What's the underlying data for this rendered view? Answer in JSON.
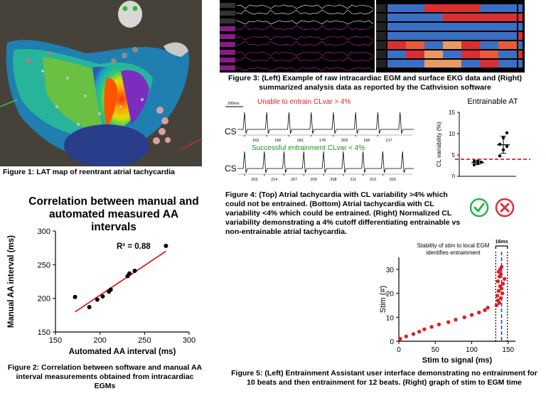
{
  "fig1": {
    "caption": "Figure 1: LAT map of reentrant atrial tachycardia"
  },
  "fig2": {
    "caption": "Figure 2: Correlation between software and manual AA interval measurements obtained from intracardiac EGMs"
  },
  "fig3": {
    "caption": "Figure 3: (Left) Example of raw intracardiac EGM and surface EKG data and (Right) summarized analysis data as reported by the Cathvision software"
  },
  "fig4": {
    "label_top": "Unable to entrain CLvar > 4%",
    "label_bottom": "Successful entrainment CLvar < 4%",
    "scale_bar": "200ms",
    "cs_top": "CS",
    "cs_bottom": "CS",
    "intervals_top": [
      "163",
      "166",
      "181",
      "178",
      "203",
      "166",
      "217"
    ],
    "intervals_bottom": [
      "203",
      "214",
      "207",
      "209",
      "208",
      "211",
      "210",
      "203"
    ],
    "caption": "Figure 4: (Top) Atrial tachycardia with CL variability >4% which could not be entrained. (Bottom) Atrial tachycardia with CL variability <4% which could be entrained. (Right) Normalized CL variability demonstrating a 4% cutoff differentiating entrainable vs non-entrainable atrial tachycardia.",
    "check_icon": "check-circle-icon",
    "cross_icon": "x-circle-icon"
  },
  "fig5": {
    "caption": "Figure 5: (Left) Entrainment Assistant user interface demonstrating no entrainment for 10 beats and then entrainment for 12 beats. (Right) graph of stim to EGM time"
  },
  "chart_data": [
    {
      "type": "scatter",
      "title": "Correlation between manual and automated measured AA intervals",
      "xlabel": "Automated AA interval (ms)",
      "ylabel": "Manual AA interval (ms)",
      "xlim": [
        150,
        300
      ],
      "ylim": [
        150,
        300
      ],
      "xticks": [
        "150",
        "200",
        "250",
        "300"
      ],
      "yticks": [
        "150",
        "200",
        "250",
        "300"
      ],
      "annotation": "R² = 0.88",
      "points": [
        {
          "x": 172,
          "y": 202
        },
        {
          "x": 188,
          "y": 187
        },
        {
          "x": 197,
          "y": 198
        },
        {
          "x": 203,
          "y": 203
        },
        {
          "x": 210,
          "y": 210
        },
        {
          "x": 212,
          "y": 213
        },
        {
          "x": 231,
          "y": 233
        },
        {
          "x": 233,
          "y": 237
        },
        {
          "x": 239,
          "y": 241
        },
        {
          "x": 274,
          "y": 278
        }
      ],
      "fit": {
        "x": [
          172,
          274
        ],
        "y": [
          180,
          270
        ],
        "color": "#e02020"
      }
    },
    {
      "type": "scatter",
      "title": "Entrainable AT",
      "ylabel": "CL variability (%)",
      "ylim": [
        0,
        15
      ],
      "yticks": [
        "0",
        "5",
        "10",
        "15"
      ],
      "threshold": 4,
      "threshold_color": "#e02020",
      "groups": [
        {
          "name": "entrainable",
          "values": [
            2.7,
            3.0,
            3.3,
            3.5,
            3.6
          ],
          "mean": 3.2,
          "sd": 0.4
        },
        {
          "name": "non-entrainable",
          "values": [
            4.8,
            6.2,
            7.0,
            7.5,
            9.0,
            10.2
          ],
          "mean": 7.4,
          "sd": 2.0
        }
      ]
    },
    {
      "type": "scatter",
      "title": "Stability of stim to local EGM identifies entrainment",
      "xlabel": "Stim to signal (ms)",
      "ylabel": "Stim (#)",
      "xlim": [
        0,
        160
      ],
      "ylim": [
        0,
        35
      ],
      "xticks": [
        "0",
        "50",
        "100",
        "150"
      ],
      "yticks": [
        "0",
        "10",
        "20",
        "30"
      ],
      "bracket_label": "16ms",
      "color": "#e02020",
      "points": [
        {
          "x": 2,
          "y": 1
        },
        {
          "x": 10,
          "y": 2
        },
        {
          "x": 20,
          "y": 3
        },
        {
          "x": 28,
          "y": 4
        },
        {
          "x": 35,
          "y": 5
        },
        {
          "x": 45,
          "y": 6
        },
        {
          "x": 55,
          "y": 7
        },
        {
          "x": 68,
          "y": 8
        },
        {
          "x": 78,
          "y": 9
        },
        {
          "x": 90,
          "y": 10
        },
        {
          "x": 100,
          "y": 11
        },
        {
          "x": 110,
          "y": 12
        },
        {
          "x": 118,
          "y": 13
        },
        {
          "x": 122,
          "y": 14
        },
        {
          "x": 134,
          "y": 15
        },
        {
          "x": 138,
          "y": 16
        },
        {
          "x": 136,
          "y": 17
        },
        {
          "x": 140,
          "y": 18
        },
        {
          "x": 135,
          "y": 19
        },
        {
          "x": 142,
          "y": 20
        },
        {
          "x": 137,
          "y": 21
        },
        {
          "x": 141,
          "y": 22
        },
        {
          "x": 139,
          "y": 23
        },
        {
          "x": 143,
          "y": 24
        },
        {
          "x": 136,
          "y": 25
        },
        {
          "x": 145,
          "y": 26
        },
        {
          "x": 138,
          "y": 27
        },
        {
          "x": 140,
          "y": 28
        },
        {
          "x": 137,
          "y": 29
        },
        {
          "x": 139,
          "y": 30
        },
        {
          "x": 141,
          "y": 31
        }
      ],
      "window": [
        133,
        149
      ],
      "center_line": 141
    }
  ]
}
